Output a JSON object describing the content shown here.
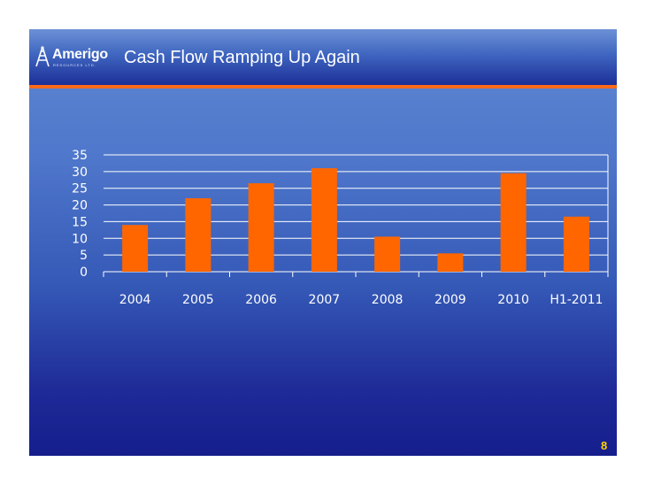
{
  "header": {
    "logo_text": "Amerigo",
    "logo_subtitle": "RESOURCES LTD.",
    "title": "Cash Flow Ramping Up Again"
  },
  "footer": {
    "page_number": "8"
  },
  "colors": {
    "bar": "#ff6600",
    "accent_rule": "#ff6a1a",
    "page_number": "#ffd200",
    "text": "#ffffff"
  },
  "chart_data": {
    "type": "bar",
    "categories": [
      "2004",
      "2005",
      "2006",
      "2007",
      "2008",
      "2009",
      "2010",
      "H1-2011"
    ],
    "values": [
      14,
      22,
      26.5,
      31,
      10.5,
      5.5,
      29.5,
      16.5
    ],
    "title": "",
    "xlabel": "",
    "ylabel": "",
    "ylim": [
      0,
      35
    ],
    "yticks": [
      0,
      5,
      10,
      15,
      20,
      25,
      30,
      35
    ],
    "grid": true,
    "legend": "none"
  }
}
